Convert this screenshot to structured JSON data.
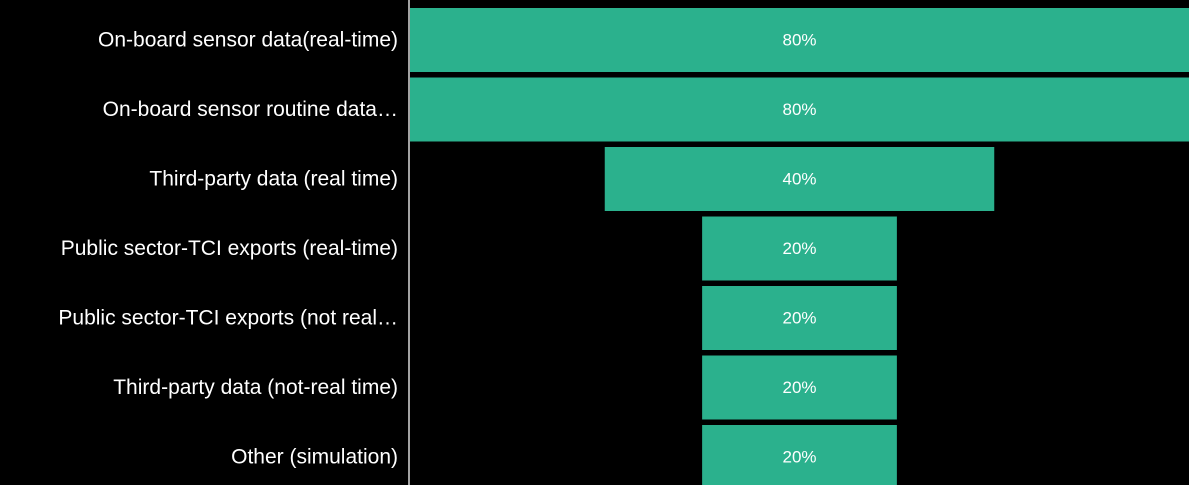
{
  "chart_data": {
    "type": "bar",
    "orientation": "horizontal-funnel",
    "categories": [
      "On-board sensor data(real-time)",
      "On-board sensor routine data…",
      "Third-party data (real time)",
      "Public sector-TCI exports (real-time)",
      "Public sector-TCI exports (not real…",
      "Third-party data (not-real time)",
      "Other (simulation)"
    ],
    "values": [
      80,
      80,
      40,
      20,
      20,
      20,
      20
    ],
    "value_labels": [
      "80%",
      "80%",
      "40%",
      "20%",
      "20%",
      "20%",
      "20%"
    ],
    "unit": "%",
    "xlim": [
      0,
      80
    ],
    "grid": false,
    "legend": "none"
  },
  "colors": {
    "background": "#000000",
    "bar": "#2bb18d",
    "text": "#ffffff",
    "axis": "#d9d9d9"
  }
}
